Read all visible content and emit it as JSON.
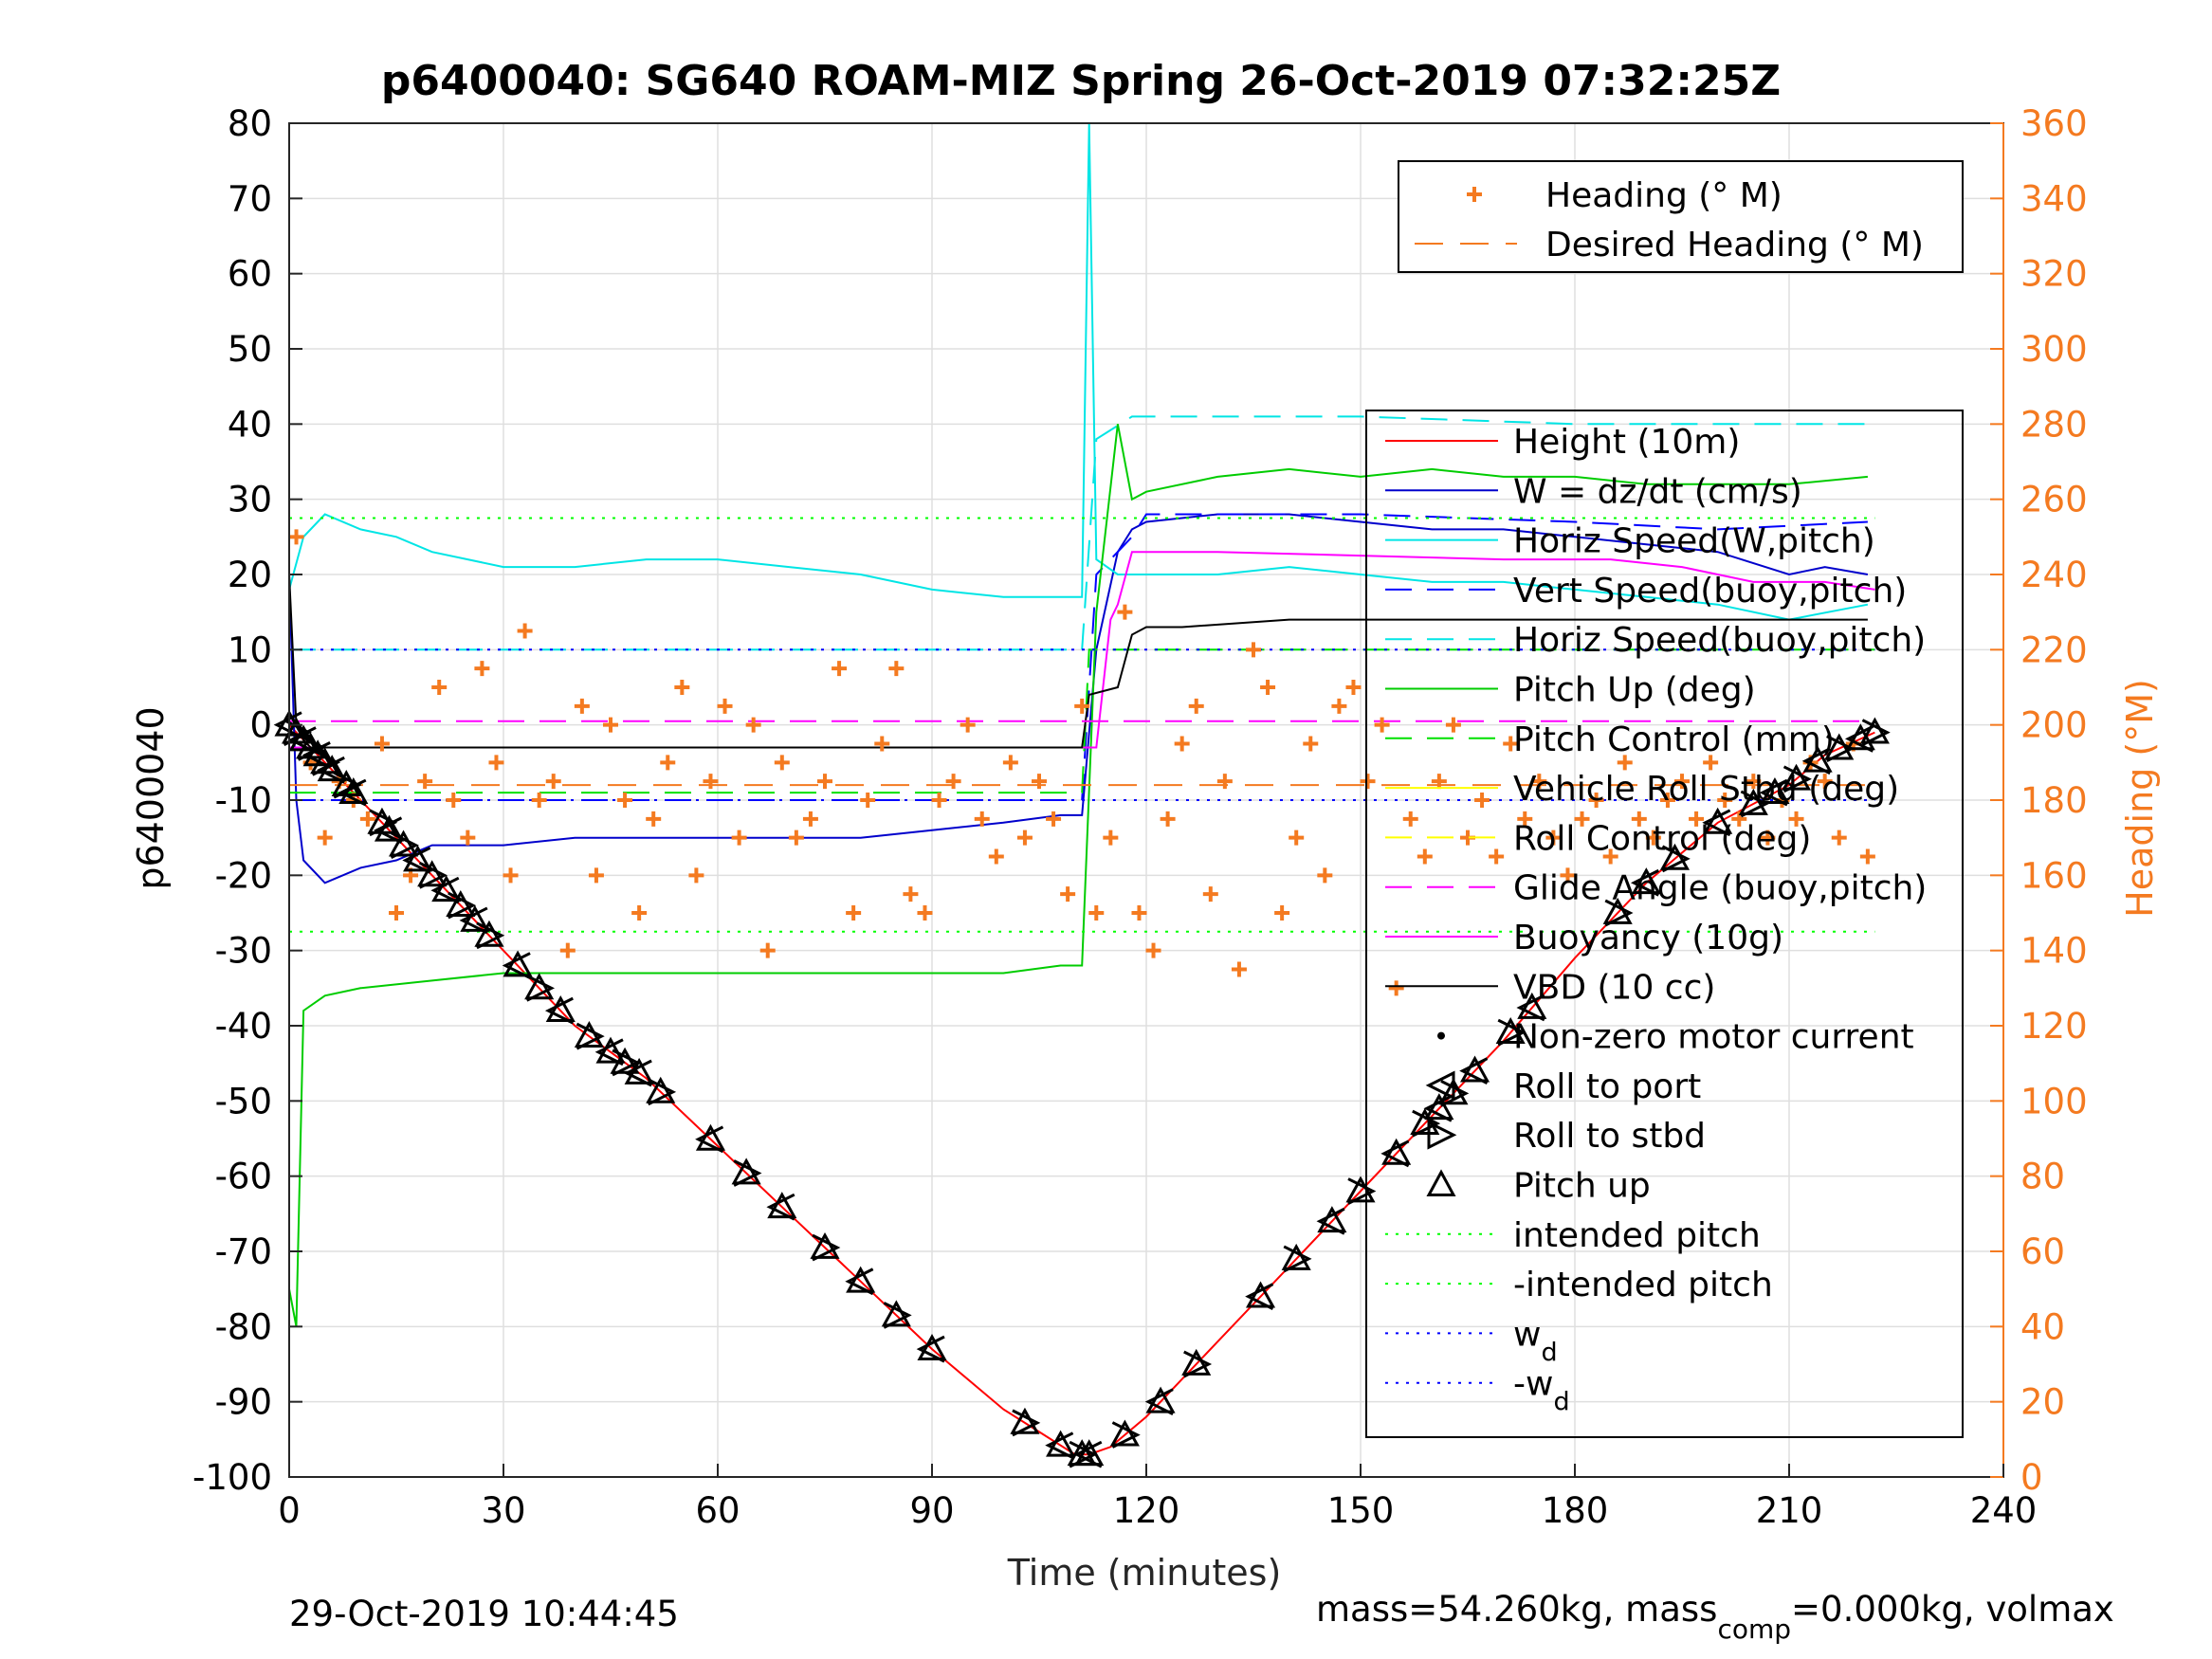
{
  "footer": {
    "timestamp": "29-Oct-2019 10:44:45",
    "mass_text": "mass=54.260kg, mass",
    "mass_sub": "comp",
    "mass_rest": "=0.000kg, volmax"
  },
  "colors": {
    "axis": "#262626",
    "grid": "#dfdfdf",
    "height": "#ff0000",
    "w": "#0000cc",
    "horiz_speed": "#00e5e5",
    "vert_speed": "#0000ff",
    "pitch_up": "#00cc00",
    "pitch_control": "#00e000",
    "roll": "#ffff00",
    "glide": "#ff00ff",
    "vbd": "#000000",
    "heading": "#f47a20",
    "intended": "#00ff00",
    "wd": "#0000ff"
  },
  "chart_data": {
    "type": "line",
    "title": "p6400040: SG640 ROAM-MIZ Spring 26-Oct-2019 07:32:25Z",
    "xlabel": "Time (minutes)",
    "ylabel": "p6400040",
    "y2label": "Heading (°M)",
    "xlim": [
      0,
      240
    ],
    "ylim": [
      -100,
      80
    ],
    "y2lim": [
      0,
      360
    ],
    "xticks": [
      0,
      30,
      60,
      90,
      120,
      150,
      180,
      210,
      240
    ],
    "yticks": [
      80,
      70,
      60,
      50,
      40,
      30,
      20,
      10,
      0,
      -10,
      -20,
      -30,
      -40,
      -50,
      -60,
      -70,
      -80,
      -90,
      -100
    ],
    "y2ticks": [
      360,
      340,
      320,
      300,
      280,
      260,
      240,
      220,
      200,
      180,
      160,
      140,
      120,
      100,
      80,
      60,
      40,
      20,
      0
    ],
    "grid": true,
    "legend_top": {
      "placement": "top-right",
      "entries": [
        "Heading (° M)",
        "Desired Heading (° M)"
      ]
    },
    "legend_main": {
      "placement": "right",
      "entries": [
        "Height (10m)",
        "W = dz/dt (cm/s)",
        "Horiz Speed(W,pitch)",
        "Vert Speed(buoy,pitch)",
        "Horiz Speed(buoy,pitch)",
        "Pitch Up (deg)",
        "Pitch Control (mm)",
        "Vehicle Roll Stbd (deg)",
        "Roll Control (deg)",
        "Glide Angle (buoy,pitch)",
        "Buoyancy (10g)",
        "VBD (10 cc)",
        "Non-zero motor current",
        "Roll to port",
        "Roll to stbd",
        "Pitch up",
        "intended pitch",
        "-intended pitch",
        "w",
        "-w"
      ],
      "subscripts": {
        "18": "d",
        "19": "d"
      }
    },
    "series": [
      {
        "name": "Height (10m)",
        "axis": "left",
        "x": [
          0,
          5,
          10,
          20,
          30,
          40,
          50,
          60,
          70,
          80,
          90,
          100,
          105,
          110,
          112,
          115,
          120,
          130,
          140,
          150,
          160,
          170,
          180,
          190,
          200,
          210,
          215,
          222
        ],
        "y": [
          0,
          -5,
          -10,
          -20,
          -30,
          -40,
          -47,
          -56,
          -65,
          -74,
          -83,
          -91,
          -94,
          -97,
          -97,
          -96,
          -92,
          -82,
          -72,
          -62,
          -52,
          -42,
          -31,
          -21,
          -13,
          -8,
          -4,
          -1
        ]
      },
      {
        "name": "W = dz/dt (cm/s)",
        "axis": "left",
        "x": [
          0,
          1,
          2,
          5,
          10,
          15,
          20,
          30,
          40,
          50,
          60,
          70,
          80,
          90,
          100,
          108,
          111,
          113,
          116,
          118,
          120,
          130,
          140,
          150,
          160,
          170,
          180,
          190,
          200,
          210,
          215,
          221
        ],
        "y": [
          20,
          -10,
          -18,
          -21,
          -19,
          -18,
          -16,
          -16,
          -15,
          -15,
          -15,
          -15,
          -15,
          -14,
          -13,
          -12,
          -12,
          10,
          23,
          26,
          27,
          28,
          28,
          27,
          26,
          26,
          25,
          24,
          23,
          20,
          21,
          20
        ]
      },
      {
        "name": "Horiz Speed(W,pitch)",
        "axis": "left",
        "x": [
          0,
          2,
          5,
          10,
          15,
          20,
          30,
          40,
          50,
          60,
          70,
          80,
          90,
          100,
          108,
          111,
          112,
          113,
          116,
          120,
          130,
          140,
          150,
          160,
          170,
          180,
          190,
          200,
          210,
          221
        ],
        "y": [
          18,
          25,
          28,
          26,
          25,
          23,
          21,
          21,
          22,
          22,
          21,
          20,
          18,
          17,
          17,
          17,
          80,
          22,
          20,
          20,
          20,
          21,
          20,
          19,
          19,
          18,
          17,
          16,
          14,
          16
        ]
      },
      {
        "name": "Vert Speed(buoy,pitch)",
        "axis": "left",
        "x": [
          0,
          111,
          113,
          118,
          120,
          150,
          180,
          200,
          221
        ],
        "y": [
          -10,
          -10,
          20,
          25,
          28,
          28,
          27,
          26,
          27
        ]
      },
      {
        "name": "Horiz Speed(buoy,pitch)",
        "axis": "left",
        "x": [
          0,
          111,
          113,
          118,
          120,
          150,
          180,
          200,
          221
        ],
        "y": [
          10,
          10,
          38,
          41,
          41,
          41,
          40,
          40,
          40
        ]
      },
      {
        "name": "Pitch Up (deg)",
        "axis": "left",
        "x": [
          0,
          1,
          2,
          5,
          10,
          20,
          30,
          40,
          50,
          60,
          70,
          80,
          90,
          100,
          108,
          111,
          113,
          116,
          118,
          120,
          130,
          140,
          150,
          160,
          170,
          180,
          190,
          200,
          210,
          221
        ],
        "y": [
          -75,
          -80,
          -38,
          -36,
          -35,
          -34,
          -33,
          -33,
          -33,
          -33,
          -33,
          -33,
          -33,
          -33,
          -32,
          -32,
          15,
          40,
          30,
          31,
          33,
          34,
          33,
          34,
          33,
          33,
          32,
          32,
          32,
          33
        ]
      },
      {
        "name": "Pitch Control (mm)",
        "axis": "left",
        "x": [
          0,
          111,
          112,
          222
        ],
        "y": [
          -9,
          -9,
          10,
          10
        ]
      },
      {
        "name": "Buoyancy (10g)",
        "axis": "left",
        "x": [
          0,
          113,
          115,
          116,
          118,
          130,
          170,
          185,
          195,
          205,
          215,
          222
        ],
        "y": [
          -3,
          -3,
          14,
          16,
          23,
          23,
          22,
          22,
          21,
          19,
          19,
          18
        ]
      },
      {
        "name": "VBD (10 cc)",
        "axis": "left",
        "x": [
          0,
          1,
          2,
          3,
          110,
          111,
          112,
          116,
          118,
          120,
          125,
          140,
          170,
          200,
          221
        ],
        "y": [
          20,
          0,
          -2,
          -3,
          -3,
          -3,
          4,
          5,
          12,
          13,
          13,
          14,
          14,
          14,
          14
        ]
      },
      {
        "name": "Glide Angle (buoy,pitch)",
        "axis": "left",
        "x": [
          0,
          112,
          113,
          222
        ],
        "y": [
          0.5,
          0.5,
          0.5,
          0.5
        ]
      },
      {
        "name": "intended pitch",
        "axis": "left",
        "x": [
          0,
          222
        ],
        "y": [
          27.5,
          27.5
        ]
      },
      {
        "name": "-intended pitch",
        "axis": "left",
        "x": [
          0,
          222
        ],
        "y": [
          -27.5,
          -27.5
        ]
      },
      {
        "name": "w",
        "axis": "left",
        "x": [
          0,
          222
        ],
        "y": [
          10,
          10
        ]
      },
      {
        "name": "-w",
        "axis": "left",
        "x": [
          0,
          222
        ],
        "y": [
          -10,
          -10
        ]
      },
      {
        "name": "Desired Heading (° M)",
        "axis": "right",
        "x": [
          0,
          222
        ],
        "y": [
          184,
          184
        ]
      },
      {
        "name": "Heading (° M)",
        "axis": "right",
        "kind": "scatter",
        "x": [
          1,
          3,
          5,
          7,
          9,
          11,
          13,
          15,
          17,
          19,
          21,
          23,
          25,
          27,
          29,
          31,
          33,
          35,
          37,
          39,
          41,
          43,
          45,
          47,
          49,
          51,
          53,
          55,
          57,
          59,
          61,
          63,
          65,
          67,
          69,
          71,
          73,
          75,
          77,
          79,
          81,
          83,
          85,
          87,
          89,
          91,
          93,
          95,
          97,
          99,
          101,
          103,
          105,
          107,
          109,
          111,
          113,
          115,
          117,
          119,
          121,
          123,
          125,
          127,
          129,
          131,
          133,
          135,
          137,
          139,
          141,
          143,
          145,
          147,
          149,
          151,
          153,
          155,
          157,
          159,
          161,
          163,
          165,
          167,
          169,
          171,
          173,
          175,
          177,
          179,
          181,
          183,
          185,
          187,
          189,
          191,
          193,
          195,
          197,
          199,
          201,
          203,
          205,
          207,
          209,
          211,
          213,
          215,
          217,
          219,
          221
        ],
        "y": [
          250,
          190,
          170,
          185,
          180,
          175,
          195,
          150,
          160,
          185,
          210,
          180,
          170,
          215,
          190,
          160,
          225,
          180,
          185,
          140,
          205,
          160,
          200,
          180,
          150,
          175,
          190,
          210,
          160,
          185,
          205,
          170,
          200,
          140,
          190,
          170,
          175,
          185,
          215,
          150,
          180,
          195,
          215,
          155,
          150,
          180,
          185,
          200,
          175,
          165,
          190,
          170,
          185,
          175,
          155,
          205,
          150,
          170,
          230,
          150,
          140,
          175,
          195,
          205,
          155,
          185,
          135,
          220,
          210,
          150,
          170,
          195,
          160,
          205,
          210,
          185,
          200,
          130,
          175,
          165,
          185,
          200,
          170,
          180,
          165,
          195,
          175,
          185,
          170,
          160,
          175,
          180,
          165,
          190,
          175,
          170,
          180,
          185,
          175,
          190,
          180,
          175,
          185,
          170,
          180,
          175,
          190,
          185,
          170,
          195,
          165
        ]
      }
    ],
    "markers": {
      "path_times": [
        0,
        1,
        2,
        3,
        4,
        5,
        6,
        8,
        9,
        13,
        14,
        16,
        18,
        20,
        22,
        24,
        26,
        28,
        32,
        35,
        38,
        42,
        45,
        47,
        49,
        52,
        59,
        64,
        69,
        75,
        80,
        85,
        90,
        103,
        108,
        111,
        112,
        117,
        122,
        127,
        136,
        141,
        146,
        150,
        155,
        159,
        161,
        163,
        166,
        171,
        174,
        186,
        190,
        194,
        200,
        205,
        208,
        211,
        214,
        217,
        220,
        222
      ]
    }
  }
}
